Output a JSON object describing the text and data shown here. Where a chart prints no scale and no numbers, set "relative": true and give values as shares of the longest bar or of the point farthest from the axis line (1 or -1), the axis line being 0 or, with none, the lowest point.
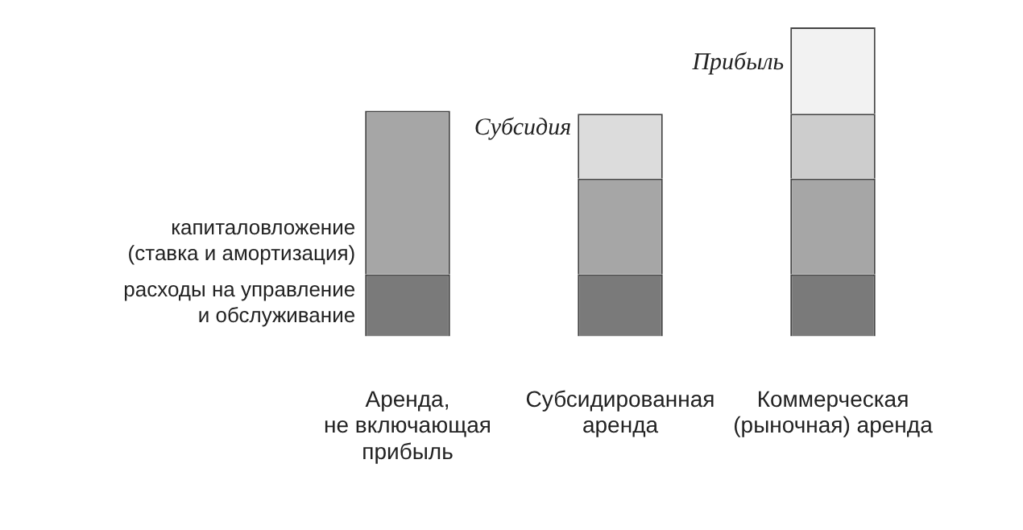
{
  "chart_data": {
    "type": "bar",
    "stacked": true,
    "relative": true,
    "legend": false,
    "grid": false,
    "categories": [
      "Аренда,\nне включающая\nприбыль",
      "Субсидированная\nаренда",
      "Коммерческая\n(рыночная) аренда"
    ],
    "series": [
      {
        "name": "расходы на управление\nи обслуживание",
        "color": "#7a7a7a",
        "values": [
          0.2,
          0.2,
          0.2
        ]
      },
      {
        "name": "капиталовложение\n(ставка и амортизация)",
        "color": "#a6a6a6",
        "values": [
          0.53,
          0.31,
          0.31
        ]
      },
      {
        "name": "Субсидия",
        "color": "#dcdcdc",
        "values": [
          null,
          0.21,
          null
        ]
      },
      {
        "color": "#cdcdcd",
        "values": [
          null,
          null,
          0.21
        ]
      },
      {
        "name": "Прибыль",
        "color": "#f2f2f2",
        "values": [
          null,
          null,
          0.28
        ]
      }
    ]
  }
}
